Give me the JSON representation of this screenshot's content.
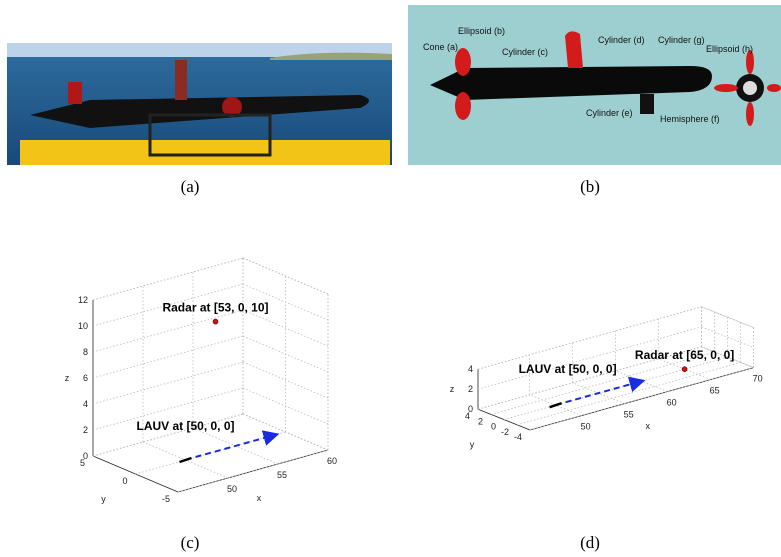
{
  "figure": {
    "panels": [
      {
        "caption": "(a)"
      },
      {
        "caption": "(b)",
        "labels": [
          "Cone (a)",
          "Ellipsoid (b)",
          "Cylinder (c)",
          "Cylinder (d)",
          "Cylinder (g)",
          "Ellipsoid (h)",
          "Cylinder (e)",
          "Hemisphere (f)"
        ]
      },
      {
        "caption": "(c)",
        "plot": {
          "xlabel": "x",
          "ylabel": "y",
          "zlabel": "z",
          "xlim": [
            45,
            60
          ],
          "ylim": [
            -5,
            5
          ],
          "zlim": [
            0,
            12
          ],
          "xticks": [
            50,
            55,
            60
          ],
          "yticks": [
            -5,
            0,
            5
          ],
          "zticks": [
            0,
            2,
            4,
            6,
            8,
            10,
            12
          ],
          "radar": {
            "label": "Radar at [53, 0, 10]",
            "position": [
              53,
              0,
              10
            ]
          },
          "lauv": {
            "label": "LAUV at [50, 0, 0]",
            "position": [
              50,
              0,
              0
            ]
          },
          "heading": {
            "from": [
              50,
              0,
              0
            ],
            "to": [
              59,
              0,
              0
            ]
          }
        }
      },
      {
        "caption": "(d)",
        "plot": {
          "xlabel": "x",
          "ylabel": "y",
          "zlabel": "z",
          "xlim": [
            44,
            70
          ],
          "ylim": [
            -4,
            4
          ],
          "zlim": [
            0,
            4
          ],
          "xticks": [
            50,
            55,
            60,
            65,
            70
          ],
          "yticks": [
            -4,
            -2,
            0,
            2,
            4
          ],
          "zticks": [
            0,
            2,
            4
          ],
          "radar": {
            "label": "Radar at [65, 0, 0]",
            "position": [
              65,
              0,
              0
            ]
          },
          "lauv": {
            "label": "LAUV at [50, 0, 0]",
            "position": [
              50,
              0,
              0
            ]
          },
          "heading": {
            "from": [
              50,
              0,
              0
            ],
            "to": [
              60,
              0,
              0
            ]
          }
        }
      }
    ]
  }
}
